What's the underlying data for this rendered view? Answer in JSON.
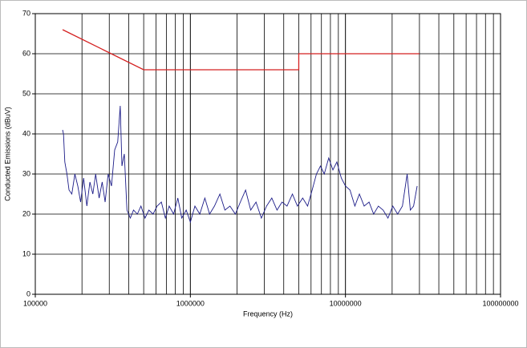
{
  "chart_data": {
    "type": "line",
    "xlabel": "Frequency (Hz)",
    "ylabel": "Conducted Emissions (dBuV)",
    "xscale": "log",
    "xlim": [
      100000,
      100000000
    ],
    "xticks": [
      100000,
      1000000,
      10000000,
      100000000
    ],
    "xminorticks": [
      200000,
      300000,
      400000,
      500000,
      600000,
      700000,
      800000,
      900000,
      2000000,
      3000000,
      4000000,
      5000000,
      6000000,
      7000000,
      8000000,
      9000000,
      20000000,
      30000000,
      40000000,
      50000000,
      60000000,
      70000000,
      80000000,
      90000000
    ],
    "ylim": [
      0,
      70
    ],
    "yticks": [
      0,
      10,
      20,
      30,
      40,
      50,
      60,
      70
    ],
    "grid": true,
    "series": [
      {
        "color": "#d42020",
        "x": [
          150000,
          500000,
          5000000,
          5000000,
          30000000
        ],
        "values": [
          66,
          56,
          56,
          60,
          60
        ]
      },
      {
        "color": "#1c1c88",
        "x": [
          150000,
          152000,
          155000,
          160000,
          165000,
          172000,
          180000,
          188000,
          196000,
          205000,
          215000,
          225000,
          235000,
          245000,
          258000,
          270000,
          282000,
          295000,
          310000,
          325000,
          340000,
          353000,
          362000,
          375000,
          390000,
          410000,
          430000,
          455000,
          480000,
          510000,
          540000,
          575000,
          610000,
          650000,
          690000,
          730000,
          780000,
          830000,
          880000,
          940000,
          1000000,
          1070000,
          1150000,
          1240000,
          1330000,
          1430000,
          1550000,
          1670000,
          1800000,
          1950000,
          2100000,
          2270000,
          2450000,
          2650000,
          2870000,
          3100000,
          3350000,
          3620000,
          3900000,
          4200000,
          4550000,
          4900000,
          5300000,
          5700000,
          6100000,
          6500000,
          6900000,
          7300000,
          7800000,
          8300000,
          8800000,
          9400000,
          10000000,
          10700000,
          11500000,
          12300000,
          13200000,
          14200000,
          15200000,
          16300000,
          17500000,
          18800000,
          20200000,
          21700000,
          23300000,
          25000000,
          26200000,
          27500000,
          29000000
        ],
        "values": [
          41,
          40,
          33,
          30,
          26,
          25,
          30,
          27,
          23,
          29,
          22,
          28,
          25,
          30,
          24,
          28,
          23,
          30,
          27,
          36,
          38,
          47,
          32,
          35,
          21,
          19,
          21,
          20,
          22,
          19,
          21,
          20,
          22,
          23,
          19,
          22,
          20,
          24,
          19,
          21,
          18,
          22,
          20,
          24,
          20,
          22,
          25,
          21,
          22,
          20,
          23,
          26,
          21,
          23,
          19,
          22,
          24,
          21,
          23,
          22,
          25,
          22,
          24,
          22,
          26,
          30,
          32,
          30,
          34,
          31,
          33,
          29,
          27,
          26,
          22,
          25,
          22,
          23,
          20,
          22,
          21,
          19,
          22,
          20,
          22,
          30,
          21,
          22,
          27
        ]
      }
    ]
  }
}
